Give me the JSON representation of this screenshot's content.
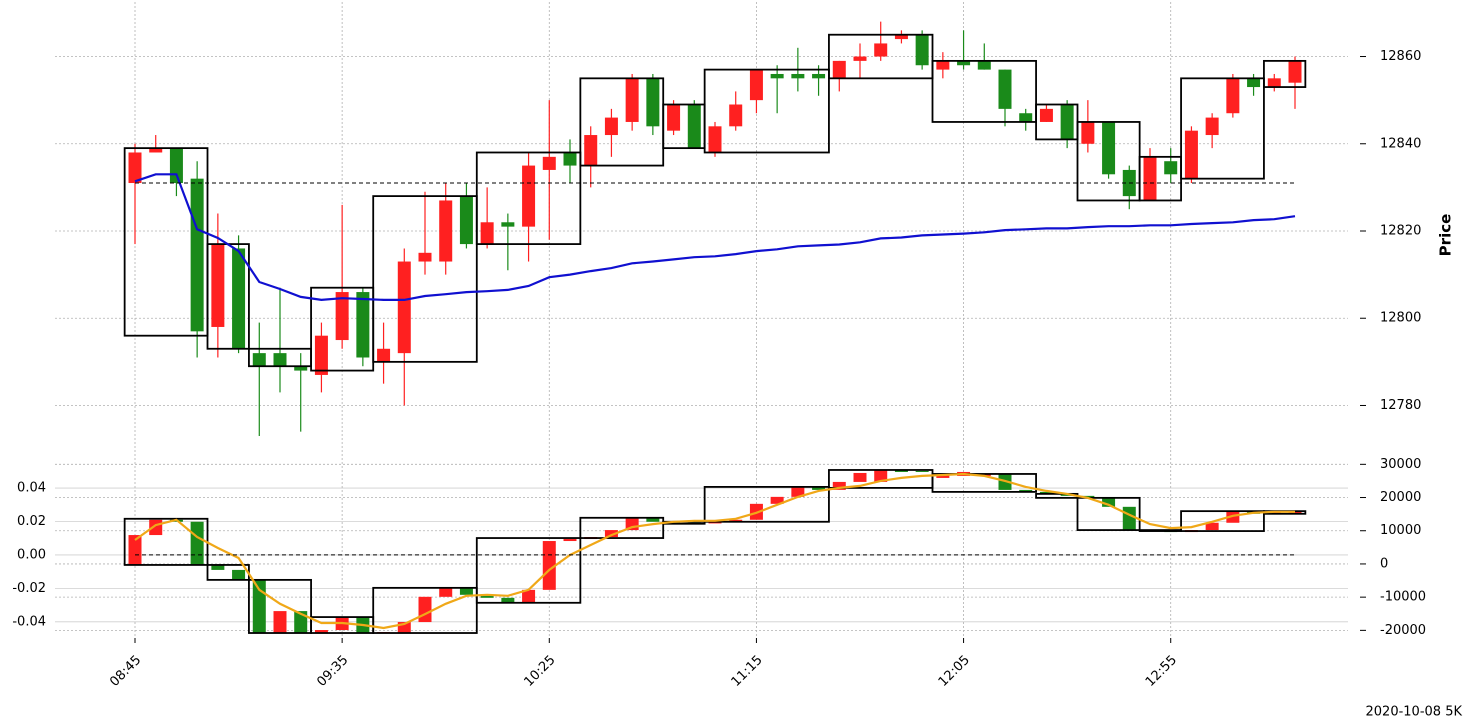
{
  "chart_data": [
    {
      "type": "candlestick",
      "ylabel": "Price",
      "x": [
        "08:45",
        "08:50",
        "08:55",
        "09:00",
        "09:05",
        "09:10",
        "09:15",
        "09:20",
        "09:25",
        "09:30",
        "09:35",
        "09:40",
        "09:45",
        "09:50",
        "09:55",
        "10:00",
        "10:05",
        "10:10",
        "10:15",
        "10:20",
        "10:25",
        "10:30",
        "10:35",
        "10:40",
        "10:45",
        "10:50",
        "10:55",
        "11:00",
        "11:05",
        "11:10",
        "11:15",
        "11:20",
        "11:25",
        "11:30",
        "11:35",
        "11:40",
        "11:45",
        "11:50",
        "11:55",
        "12:00",
        "12:05",
        "12:10",
        "12:15",
        "12:20",
        "12:25",
        "12:30",
        "12:35",
        "12:40",
        "12:45",
        "12:50",
        "12:55",
        "13:00",
        "13:05",
        "13:10",
        "13:15",
        "13:20",
        "13:25"
      ],
      "xticks": [
        "08:45",
        "09:35",
        "10:25",
        "11:15",
        "12:05",
        "12:55"
      ],
      "open": [
        12831,
        12838,
        12839,
        12832,
        12798,
        12816,
        12792,
        12792,
        12789,
        12787,
        12795,
        12806,
        12790,
        12792,
        12813,
        12813,
        12828,
        12817,
        12822,
        12821,
        12834,
        12838,
        12835,
        12842,
        12845,
        12855,
        12843,
        12849,
        12838,
        12844,
        12850,
        12856,
        12856,
        12856,
        12855,
        12859,
        12860,
        12864,
        12865,
        12857,
        12859,
        12859,
        12857,
        12847,
        12845,
        12849,
        12840,
        12845,
        12834,
        12827,
        12836,
        12832,
        12842,
        12847,
        12855,
        12853,
        12854
      ],
      "high": [
        12840,
        12842,
        12839,
        12836,
        12824,
        12819,
        12799,
        12807,
        12792,
        12799,
        12826,
        12807,
        12799,
        12816,
        12829,
        12831,
        12831,
        12830,
        12824,
        12838,
        12850,
        12841,
        12844,
        12848,
        12856,
        12856,
        12850,
        12850,
        12845,
        12852,
        12857,
        12858,
        12862,
        12858,
        12859,
        12863,
        12868,
        12866,
        12866,
        12861,
        12866,
        12863,
        12857,
        12848,
        12849,
        12850,
        12850,
        12845,
        12835,
        12839,
        12839,
        12844,
        12847,
        12856,
        12856,
        12856,
        12860
      ],
      "low": [
        12817,
        12838,
        12828,
        12791,
        12791,
        12792,
        12773,
        12783,
        12774,
        12783,
        12793,
        12789,
        12785,
        12780,
        12810,
        12810,
        12816,
        12816,
        12811,
        12813,
        12818,
        12831,
        12830,
        12837,
        12843,
        12842,
        12842,
        12839,
        12837,
        12843,
        12847,
        12847,
        12852,
        12851,
        12852,
        12855,
        12859,
        12863,
        12857,
        12855,
        12857,
        12857,
        12844,
        12843,
        12845,
        12839,
        12838,
        12832,
        12825,
        12827,
        12831,
        12831,
        12839,
        12846,
        12851,
        12852,
        12848
      ],
      "close": [
        12838,
        12839,
        12831,
        12797,
        12817,
        12793,
        12789,
        12789,
        12788,
        12796,
        12806,
        12791,
        12793,
        12813,
        12815,
        12827,
        12817,
        12822,
        12821,
        12835,
        12837,
        12835,
        12842,
        12846,
        12855,
        12844,
        12849,
        12839,
        12844,
        12849,
        12857,
        12855,
        12855,
        12855,
        12859,
        12860,
        12863,
        12865,
        12858,
        12859,
        12858,
        12857,
        12848,
        12845,
        12848,
        12841,
        12845,
        12833,
        12828,
        12837,
        12833,
        12843,
        12846,
        12855,
        12853,
        12855,
        12859
      ],
      "up_color": "#ff2020",
      "down_color": "#1a8a1a",
      "lines": [
        {
          "color": "#1010d0",
          "values": [
            12831.4,
            12833,
            12833,
            12820.4,
            12818.4,
            12815.4,
            12808.3,
            12806.7,
            12804.9,
            12804.2,
            12804.6,
            12804.4,
            12804.2,
            12804.2,
            12805.1,
            12805.5,
            12806,
            12806.2,
            12806.5,
            12807.4,
            12809.4,
            12810,
            12810.8,
            12811.5,
            12812.6,
            12813,
            12813.5,
            12814,
            12814.2,
            12814.7,
            12815.4,
            12815.8,
            12816.5,
            12816.7,
            12816.9,
            12817.4,
            12818.3,
            12818.5,
            12819,
            12819.2,
            12819.4,
            12819.7,
            12820.2,
            12820.4,
            12820.6,
            12820.6,
            12820.9,
            12821.1,
            12821.1,
            12821.3,
            12821.3,
            12821.6,
            12821.8,
            12822,
            12822.5,
            12822.7,
            12823.4
          ]
        }
      ],
      "hline": {
        "value": 12831
      },
      "boxes": {
        "start": [
          "08:45",
          "09:05",
          "09:15",
          "09:30",
          "09:45",
          "10:10",
          "10:35",
          "10:55",
          "11:05",
          "11:35",
          "12:00",
          "12:25",
          "12:35",
          "12:50",
          "13:00",
          "13:20"
        ],
        "end": [
          "09:00",
          "09:10",
          "09:25",
          "09:40",
          "10:05",
          "10:30",
          "10:50",
          "11:00",
          "11:30",
          "11:55",
          "12:20",
          "12:30",
          "12:45",
          "12:55",
          "13:15",
          "13:25"
        ],
        "top": [
          12839,
          12817,
          12793,
          12807,
          12828,
          12838,
          12855,
          12849,
          12857,
          12865,
          12859,
          12849,
          12845,
          12837,
          12855,
          12859
        ],
        "bottom": [
          12796,
          12793,
          12789,
          12788,
          12790,
          12817,
          12835,
          12839,
          12838,
          12855,
          12845,
          12841,
          12827,
          12827,
          12832,
          12853
        ]
      },
      "ylim": [
        12767.5,
        12872.5
      ],
      "yticks": [
        12780,
        12800,
        12820,
        12840,
        12860
      ],
      "grid": true
    },
    {
      "type": "candlestick",
      "open": [
        -300,
        8700,
        13300,
        12700,
        -300,
        -1800,
        -4800,
        -20800,
        -14200,
        -20800,
        -19900,
        -16000,
        -20800,
        -20800,
        -17500,
        -9900,
        -7200,
        -9300,
        -10200,
        -11700,
        -7800,
        6900,
        7500,
        8100,
        10200,
        13900,
        12700,
        12400,
        12200,
        12500,
        13300,
        18100,
        20200,
        23200,
        22300,
        24700,
        24700,
        28300,
        28000,
        25900,
        26500,
        26500,
        27100,
        22300,
        21700,
        21100,
        20500,
        19900,
        17200,
        10200,
        9900,
        9600,
        10200,
        12400,
        15700,
        15100,
        15100
      ],
      "close": [
        8700,
        13300,
        12700,
        -300,
        -1800,
        -4800,
        -20800,
        -14200,
        -20800,
        -19900,
        -16000,
        -20800,
        -20500,
        -17500,
        -9900,
        -7200,
        -9300,
        -10200,
        -11700,
        -7800,
        6900,
        7500,
        8100,
        10200,
        13900,
        12700,
        12400,
        12200,
        12500,
        13300,
        18100,
        20200,
        23200,
        22300,
        24700,
        27400,
        28300,
        27700,
        27700,
        27100,
        27700,
        27100,
        22300,
        21700,
        21100,
        20500,
        19900,
        17200,
        10200,
        9900,
        9600,
        10200,
        12400,
        15700,
        15100,
        15700,
        15700
      ],
      "up_color": "#ff2020",
      "down_color": "#1a8a1a",
      "lines": [
        {
          "color": "#f0a818",
          "values": [
            7200,
            11700,
            13300,
            8100,
            4800,
            1800,
            -7800,
            -12000,
            -15000,
            -17800,
            -17800,
            -18400,
            -19300,
            -18100,
            -15100,
            -12000,
            -9600,
            -9300,
            -9600,
            -7800,
            -1800,
            2700,
            5700,
            8700,
            11100,
            12000,
            12700,
            13000,
            13000,
            13600,
            15400,
            17800,
            20200,
            22000,
            22900,
            23500,
            25000,
            25900,
            26500,
            26800,
            27100,
            26500,
            25000,
            23200,
            22000,
            21100,
            19900,
            17800,
            14800,
            12000,
            10800,
            11100,
            12700,
            14500,
            15400,
            15700,
            15700
          ]
        }
      ],
      "hline": {
        "value": 0,
        "axis": "y2"
      },
      "boxes": {
        "start": [
          "08:45",
          "09:05",
          "09:15",
          "09:30",
          "09:45",
          "10:10",
          "10:35",
          "10:55",
          "11:05",
          "11:35",
          "12:00",
          "12:25",
          "12:35",
          "12:50",
          "13:00",
          "13:20"
        ],
        "end": [
          "09:00",
          "09:10",
          "09:25",
          "09:40",
          "10:05",
          "10:30",
          "10:50",
          "11:00",
          "11:30",
          "11:55",
          "12:20",
          "12:30",
          "12:45",
          "12:55",
          "13:15",
          "13:25"
        ],
        "top": [
          13600,
          -300,
          -4800,
          -16000,
          -7200,
          7800,
          13900,
          12700,
          23200,
          28300,
          27100,
          21100,
          19900,
          10200,
          15900,
          15900
        ],
        "bottom": [
          -300,
          -4800,
          -20800,
          -20800,
          -20800,
          -11700,
          7800,
          12100,
          12700,
          22900,
          21700,
          19900,
          10200,
          9900,
          9900,
          15100
        ]
      },
      "ylim": [
        -21700,
        30700
      ],
      "yticks": [
        -20000,
        -10000,
        0,
        10000,
        20000,
        30000
      ],
      "y2lim": [
        -0.0485,
        0.0556
      ],
      "y2ticks": [
        -0.04,
        -0.02,
        {
          "value": 0,
          "label": "0.00"
        },
        0.02,
        0.04
      ],
      "grid": true
    }
  ],
  "footer": "2020-10-08 5K"
}
